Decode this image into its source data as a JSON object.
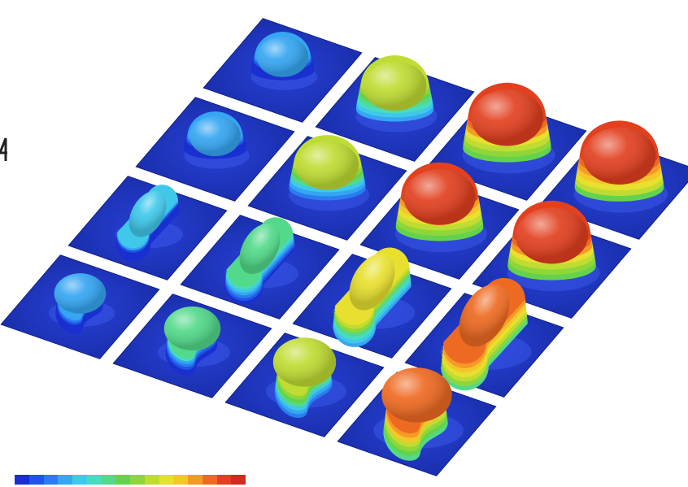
{
  "figure": {
    "description_free": true,
    "grid": {
      "rows": 4,
      "cols": 4
    },
    "plate_color": "#1c35c8",
    "plate_edge_color": "#0f1f8a",
    "gap_color": "#ffffff",
    "tiles": [
      {
        "row": 0,
        "col": 0,
        "level": 0.22,
        "shape": "dome"
      },
      {
        "row": 0,
        "col": 1,
        "level": 0.62,
        "shape": "dome"
      },
      {
        "row": 0,
        "col": 2,
        "level": 0.92,
        "shape": "dome"
      },
      {
        "row": 0,
        "col": 3,
        "level": 0.95,
        "shape": "dome"
      },
      {
        "row": 1,
        "col": 0,
        "level": 0.2,
        "shape": "dome"
      },
      {
        "row": 1,
        "col": 1,
        "level": 0.6,
        "shape": "dome"
      },
      {
        "row": 1,
        "col": 2,
        "level": 0.9,
        "shape": "dome"
      },
      {
        "row": 1,
        "col": 3,
        "level": 0.92,
        "shape": "dome"
      },
      {
        "row": 2,
        "col": 0,
        "level": 0.25,
        "shape": "capsule"
      },
      {
        "row": 2,
        "col": 1,
        "level": 0.42,
        "shape": "capsule"
      },
      {
        "row": 2,
        "col": 2,
        "level": 0.65,
        "shape": "capsule"
      },
      {
        "row": 2,
        "col": 3,
        "level": 0.88,
        "shape": "capsule"
      },
      {
        "row": 3,
        "col": 0,
        "level": 0.22,
        "shape": "kidney"
      },
      {
        "row": 3,
        "col": 1,
        "level": 0.38,
        "shape": "kidney"
      },
      {
        "row": 3,
        "col": 2,
        "level": 0.6,
        "shape": "kidney"
      },
      {
        "row": 3,
        "col": 3,
        "level": 0.85,
        "shape": "kidney"
      }
    ],
    "colorbar": {
      "colors": [
        "#1a2fd0",
        "#1f55e6",
        "#2a7df0",
        "#35a6f2",
        "#3fc8ea",
        "#48dbc0",
        "#52d98a",
        "#63d34d",
        "#8fd63a",
        "#bfdc33",
        "#e7e02f",
        "#f5c62a",
        "#f59a26",
        "#ee6a22",
        "#e2401f",
        "#d12a1e"
      ]
    }
  }
}
